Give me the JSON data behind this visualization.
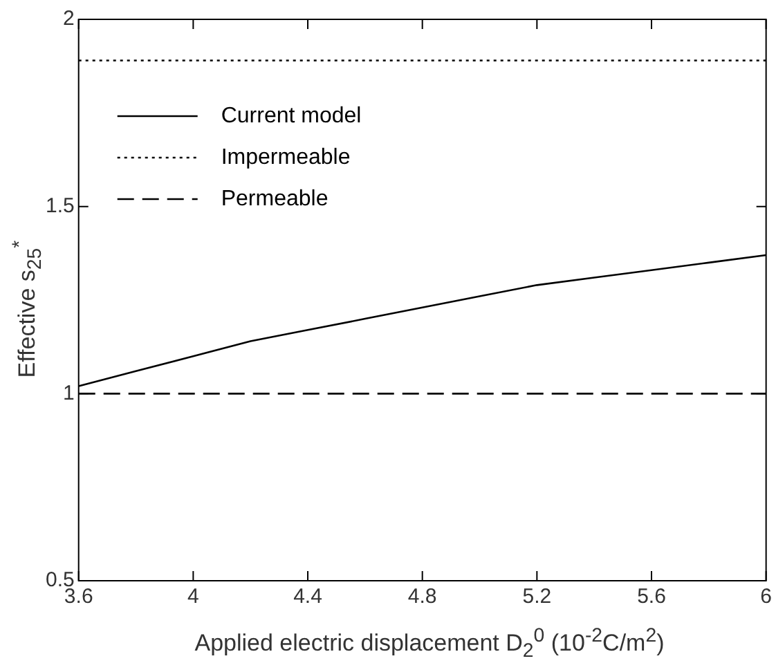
{
  "chart_data": {
    "type": "line",
    "xlabel": "Applied electric displacement D$_{2}$$^{0}$ (10$^{-2}$C/m$^{2}$)",
    "ylabel": "Effective s$_{25}$$^{*}$",
    "xlim": [
      3.6,
      6
    ],
    "xticks": [
      3.6,
      4,
      4.4,
      4.8,
      5.2,
      5.6,
      6
    ],
    "ylim": [
      0.5,
      2
    ],
    "yticks": [
      0.5,
      1,
      1.5,
      2
    ],
    "grid": false,
    "legend": "top left",
    "marker": "none",
    "series": [
      {
        "name": "Current model",
        "color": "#000000",
        "line_style": "solid",
        "x": [
          3.6,
          3.8,
          4,
          4.2,
          4.4,
          4.6,
          4.8,
          5,
          5.2,
          5.4,
          5.6,
          5.8,
          6
        ],
        "values": [
          1.02,
          1.06,
          1.1,
          1.14,
          1.17,
          1.2,
          1.23,
          1.26,
          1.29,
          1.31,
          1.33,
          1.35,
          1.37
        ]
      },
      {
        "name": "Impermeable",
        "color": "#000000",
        "line_style": "dotted",
        "x": [
          3.6,
          6
        ],
        "values": [
          1.89,
          1.89
        ]
      },
      {
        "name": "Permeable",
        "color": "#000000",
        "line_style": "dashed",
        "x": [
          3.6,
          6
        ],
        "values": [
          1,
          1
        ]
      }
    ]
  }
}
